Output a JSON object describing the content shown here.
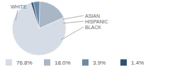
{
  "chart_data": {
    "type": "pie",
    "categories": [
      "WHITE",
      "BLACK",
      "HISPANIC",
      "ASIAN"
    ],
    "values": [
      76.8,
      18.0,
      3.9,
      1.4
    ],
    "value_labels": [
      "76.8%",
      "18.0%",
      "3.9%",
      "1.4%"
    ],
    "colors": [
      "#d5dce5",
      "#a8b6c6",
      "#6e8aa7",
      "#2f5273"
    ],
    "legend": "bottom"
  }
}
